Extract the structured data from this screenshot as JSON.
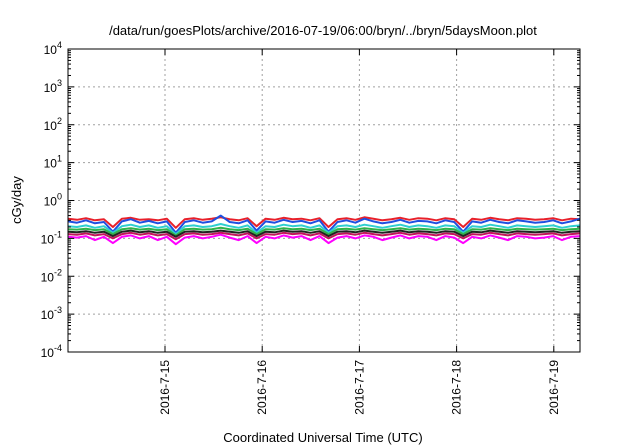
{
  "chart_data": {
    "type": "line",
    "title": "/data/run/goesPlots/archive/2016-07-19/06:00/bryn/../bryn/5daysMoon.plot",
    "xlabel": "Coordinated Universal Time (UTC)",
    "ylabel": "cGy/day",
    "yscale": "log",
    "ylim_exponents": [
      -4,
      4
    ],
    "y_tick_base": "10",
    "y_tick_exponents": [
      "-4",
      "-3",
      "-2",
      "-1",
      "0",
      "1",
      "2",
      "3",
      "4"
    ],
    "x_range_days": [
      "2016-07-14",
      "2016-07-19"
    ],
    "x_ticks": [
      "2016-7-15",
      "2016-7-16",
      "2016-7-17",
      "2016-7-18",
      "2016-7-19"
    ],
    "grid": true,
    "series": [
      {
        "color": "#e8202a",
        "level": 0.33,
        "values": [
          0.33,
          0.31,
          0.34,
          0.3,
          0.32,
          0.2,
          0.33,
          0.35,
          0.31,
          0.32,
          0.3,
          0.33,
          0.19,
          0.32,
          0.34,
          0.31,
          0.33,
          0.36,
          0.32,
          0.3,
          0.34,
          0.21,
          0.33,
          0.31,
          0.35,
          0.32,
          0.33,
          0.3,
          0.34,
          0.2,
          0.32,
          0.34,
          0.31,
          0.36,
          0.33,
          0.3,
          0.32,
          0.35,
          0.31,
          0.34,
          0.33,
          0.3,
          0.34,
          0.32,
          0.2,
          0.33,
          0.31,
          0.35,
          0.32,
          0.3,
          0.34,
          0.33,
          0.31,
          0.32,
          0.34,
          0.3,
          0.33,
          0.32
        ]
      },
      {
        "color": "#1f4fe0",
        "level": 0.28,
        "values": [
          0.28,
          0.26,
          0.3,
          0.25,
          0.27,
          0.15,
          0.28,
          0.32,
          0.26,
          0.29,
          0.25,
          0.28,
          0.14,
          0.27,
          0.3,
          0.26,
          0.28,
          0.4,
          0.27,
          0.25,
          0.3,
          0.16,
          0.28,
          0.26,
          0.31,
          0.27,
          0.29,
          0.25,
          0.3,
          0.15,
          0.27,
          0.3,
          0.26,
          0.33,
          0.28,
          0.25,
          0.27,
          0.31,
          0.26,
          0.29,
          0.28,
          0.25,
          0.3,
          0.27,
          0.15,
          0.28,
          0.26,
          0.31,
          0.27,
          0.25,
          0.3,
          0.28,
          0.26,
          0.27,
          0.3,
          0.25,
          0.28,
          0.33
        ]
      },
      {
        "color": "#2ecfd0",
        "level": 0.21,
        "values": [
          0.21,
          0.2,
          0.22,
          0.19,
          0.21,
          0.14,
          0.21,
          0.23,
          0.2,
          0.22,
          0.19,
          0.21,
          0.13,
          0.21,
          0.22,
          0.2,
          0.21,
          0.24,
          0.21,
          0.19,
          0.22,
          0.14,
          0.21,
          0.2,
          0.23,
          0.21,
          0.22,
          0.19,
          0.22,
          0.14,
          0.21,
          0.22,
          0.2,
          0.23,
          0.21,
          0.19,
          0.21,
          0.23,
          0.2,
          0.22,
          0.21,
          0.19,
          0.22,
          0.21,
          0.14,
          0.21,
          0.2,
          0.23,
          0.21,
          0.19,
          0.22,
          0.21,
          0.2,
          0.21,
          0.22,
          0.19,
          0.21,
          0.22
        ]
      },
      {
        "color": "#2fb24a",
        "level": 0.175,
        "values": [
          0.175,
          0.17,
          0.18,
          0.165,
          0.175,
          0.13,
          0.175,
          0.185,
          0.17,
          0.18,
          0.165,
          0.175,
          0.12,
          0.175,
          0.18,
          0.17,
          0.175,
          0.19,
          0.175,
          0.165,
          0.18,
          0.13,
          0.175,
          0.17,
          0.185,
          0.175,
          0.18,
          0.165,
          0.18,
          0.13,
          0.175,
          0.18,
          0.17,
          0.185,
          0.175,
          0.165,
          0.175,
          0.185,
          0.17,
          0.18,
          0.175,
          0.165,
          0.18,
          0.175,
          0.13,
          0.175,
          0.17,
          0.185,
          0.175,
          0.165,
          0.18,
          0.175,
          0.17,
          0.175,
          0.18,
          0.165,
          0.175,
          0.18
        ]
      },
      {
        "color": "#222222",
        "level": 0.15,
        "values": [
          0.15,
          0.145,
          0.155,
          0.14,
          0.15,
          0.115,
          0.15,
          0.16,
          0.145,
          0.155,
          0.14,
          0.15,
          0.11,
          0.15,
          0.155,
          0.145,
          0.15,
          0.16,
          0.15,
          0.14,
          0.155,
          0.115,
          0.15,
          0.145,
          0.16,
          0.15,
          0.155,
          0.14,
          0.155,
          0.115,
          0.15,
          0.155,
          0.145,
          0.16,
          0.15,
          0.14,
          0.15,
          0.16,
          0.145,
          0.155,
          0.15,
          0.14,
          0.155,
          0.15,
          0.115,
          0.15,
          0.145,
          0.16,
          0.15,
          0.14,
          0.155,
          0.15,
          0.145,
          0.15,
          0.155,
          0.14,
          0.15,
          0.155
        ]
      },
      {
        "color": "#c0165a",
        "level": 0.13,
        "values": [
          0.13,
          0.125,
          0.135,
          0.12,
          0.13,
          0.1,
          0.13,
          0.14,
          0.125,
          0.135,
          0.12,
          0.13,
          0.095,
          0.13,
          0.135,
          0.125,
          0.13,
          0.14,
          0.13,
          0.12,
          0.135,
          0.1,
          0.13,
          0.125,
          0.14,
          0.13,
          0.135,
          0.12,
          0.135,
          0.1,
          0.13,
          0.135,
          0.125,
          0.14,
          0.13,
          0.12,
          0.13,
          0.14,
          0.125,
          0.135,
          0.13,
          0.12,
          0.135,
          0.13,
          0.1,
          0.13,
          0.125,
          0.14,
          0.13,
          0.12,
          0.135,
          0.13,
          0.125,
          0.13,
          0.135,
          0.12,
          0.13,
          0.135
        ]
      },
      {
        "color": "#ff00ff",
        "level": 0.11,
        "values": [
          0.11,
          0.105,
          0.115,
          0.09,
          0.11,
          0.075,
          0.11,
          0.12,
          0.1,
          0.115,
          0.09,
          0.11,
          0.07,
          0.105,
          0.115,
          0.1,
          0.11,
          0.125,
          0.105,
          0.09,
          0.115,
          0.075,
          0.11,
          0.1,
          0.12,
          0.105,
          0.115,
          0.09,
          0.115,
          0.075,
          0.105,
          0.115,
          0.1,
          0.12,
          0.11,
          0.09,
          0.105,
          0.12,
          0.1,
          0.115,
          0.11,
          0.09,
          0.115,
          0.105,
          0.075,
          0.11,
          0.1,
          0.12,
          0.105,
          0.09,
          0.115,
          0.11,
          0.1,
          0.105,
          0.115,
          0.09,
          0.11,
          0.115
        ]
      }
    ]
  }
}
